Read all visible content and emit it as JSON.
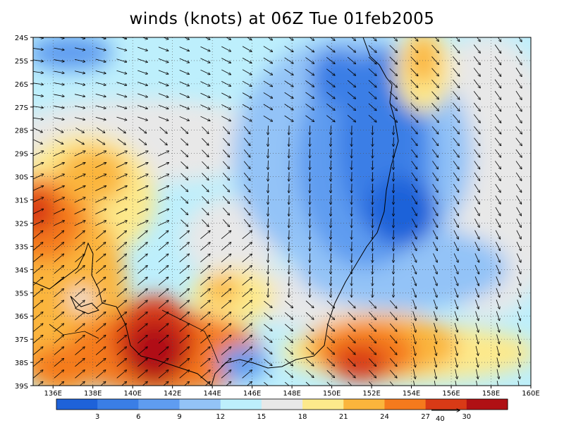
{
  "title": "winds (knots) at 06Z Tue 01feb2005",
  "map": {
    "lon_ticks": [
      "136E",
      "138E",
      "140E",
      "142E",
      "144E",
      "146E",
      "148E",
      "150E",
      "152E",
      "154E",
      "156E",
      "158E",
      "160E"
    ],
    "lat_ticks": [
      "24S",
      "25S",
      "26S",
      "27S",
      "28S",
      "29S",
      "30S",
      "31S",
      "32S",
      "33S",
      "34S",
      "35S",
      "36S",
      "37S",
      "38S",
      "39S"
    ],
    "lon_range": [
      135,
      160
    ],
    "lat_range": [
      -39,
      -24
    ]
  },
  "colorbar": {
    "labels": [
      "3",
      "6",
      "9",
      "12",
      "15",
      "18",
      "21",
      "24",
      "27",
      "30"
    ],
    "colors": [
      "#1e62d9",
      "#3a7ee6",
      "#5f9cf0",
      "#93c3f7",
      "#bdeffc",
      "#e8e8e8",
      "#fde98b",
      "#fbb53c",
      "#f57a1d",
      "#d93a16",
      "#b01014"
    ]
  },
  "reference_vector": {
    "label": "40",
    "knots": 40
  }
}
